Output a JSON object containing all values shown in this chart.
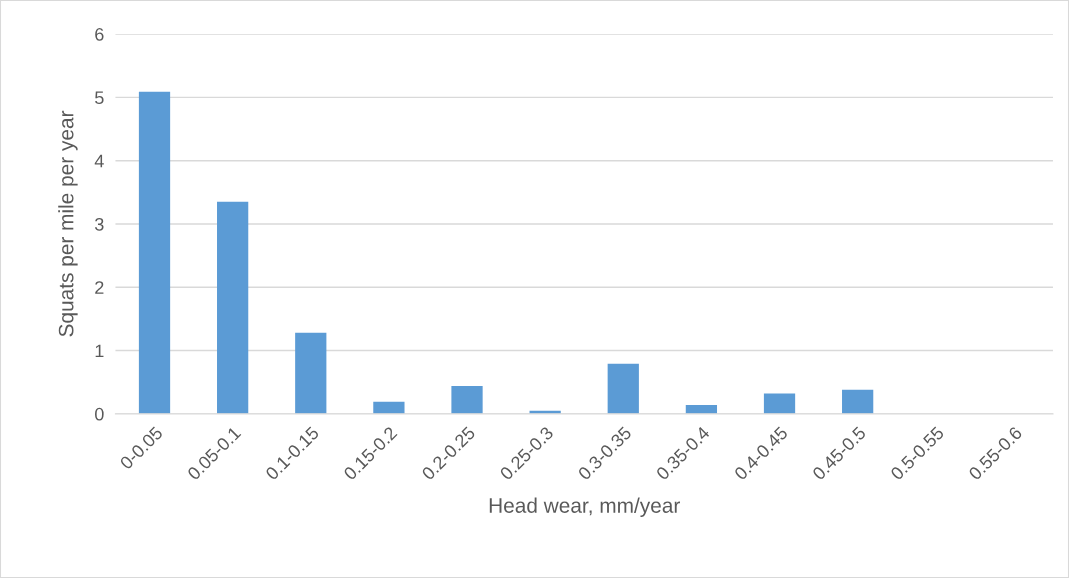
{
  "chart_data": {
    "type": "bar",
    "xlabel": "Head wear, mm/year",
    "ylabel": "Squats per mile per year",
    "categories": [
      "0-0.05",
      "0.05-0.1",
      "0.1-0.15",
      "0.15-0.2",
      "0.2-0.25",
      "0.25-0.3",
      "0.3-0.35",
      "0.35-0.4",
      "0.4-0.45",
      "0.45-0.5",
      "0.5-0.55",
      "0.55-0.6"
    ],
    "values": [
      5.09,
      3.35,
      1.28,
      0.19,
      0.44,
      0.05,
      0.79,
      0.14,
      0.32,
      0.38,
      0,
      0
    ],
    "color": "#5b9bd5",
    "ylim": [
      0,
      6
    ],
    "yticks": [
      0,
      1,
      2,
      3,
      4,
      5,
      6
    ],
    "grid": "y",
    "legend": false
  }
}
